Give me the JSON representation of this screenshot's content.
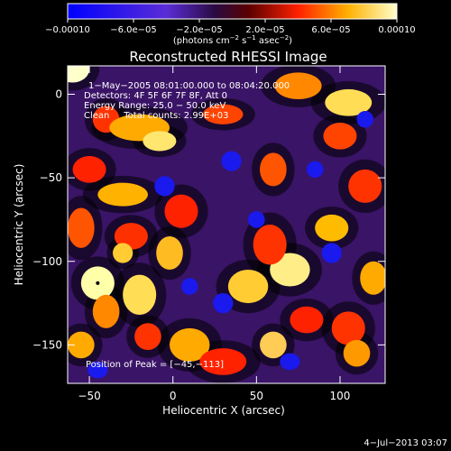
{
  "chart_data": {
    "type": "heatmap",
    "title": "Reconstructed RHESSI Image",
    "xlabel": "Heliocentric X (arcsec)",
    "ylabel": "Heliocentric Y (arcsec)",
    "xlim": [
      -63,
      127
    ],
    "ylim": [
      -173,
      17
    ],
    "x_ticks": [
      -50,
      0,
      50,
      100
    ],
    "y_ticks": [
      0,
      -50,
      -100,
      -150
    ],
    "colorbar": {
      "min": -0.0001,
      "max": 0.0001,
      "tick_values": [
        -0.0001,
        -6e-05,
        -2e-05,
        2e-05,
        6e-05,
        0.0001
      ],
      "tick_labels": [
        "−0.00010",
        "−6.0e−05",
        "−2.0e−05",
        "2.0e−05",
        "6.0e−05",
        "0.00010"
      ],
      "unit_main": "(photons cm",
      "unit_exp1": "−2",
      "unit_mid": " s",
      "unit_exp2": "−1",
      "unit_end": " asec",
      "unit_exp3": "−2",
      "unit_close": ")"
    },
    "annotations": [
      "1−May−2005 08:01:00.000 to 08:04:20.000",
      "Detectors: 4F 5F 6F 7F 8F, Att 0",
      "Energy Range: 25.0 − 50.0 keV",
      "Clean     Total counts: 2.99E+03"
    ],
    "peak_label": "Position of Peak = [−45,−113]",
    "peak_position": [
      -45,
      -113
    ],
    "grid": false
  },
  "footer": {
    "date": "4−Jul−2013 03:07"
  }
}
